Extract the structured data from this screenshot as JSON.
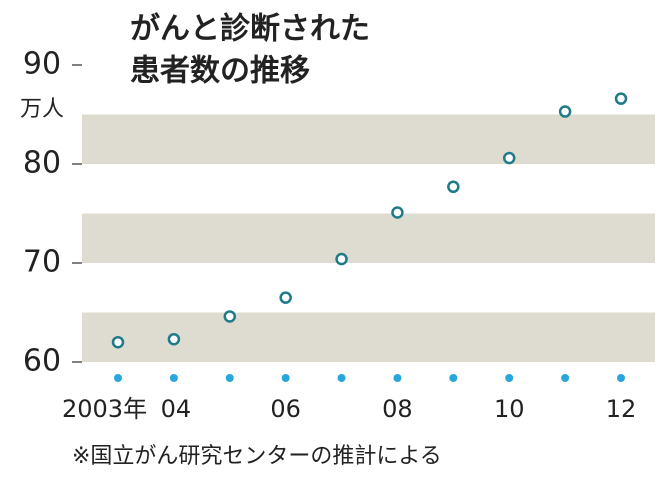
{
  "chart_data": {
    "type": "line",
    "title": [
      "がんと診断された",
      "患者数の推移"
    ],
    "y_unit": "万人",
    "categories": [
      "2003年",
      "04",
      null,
      "06",
      null,
      "08",
      null,
      "10",
      null,
      "12"
    ],
    "series": [
      {
        "name": "患者数",
        "color": "#1f7a8a",
        "values": [
          62.0,
          62.3,
          64.6,
          66.5,
          70.4,
          75.1,
          77.7,
          80.6,
          85.3,
          86.6
        ]
      }
    ],
    "ylim": [
      60,
      90
    ],
    "yticks": [
      60,
      70,
      80,
      90
    ],
    "band_color": "#dedbd0",
    "dot_color": "#29a6dc",
    "note": "※国立がん研究センターの推計による"
  }
}
